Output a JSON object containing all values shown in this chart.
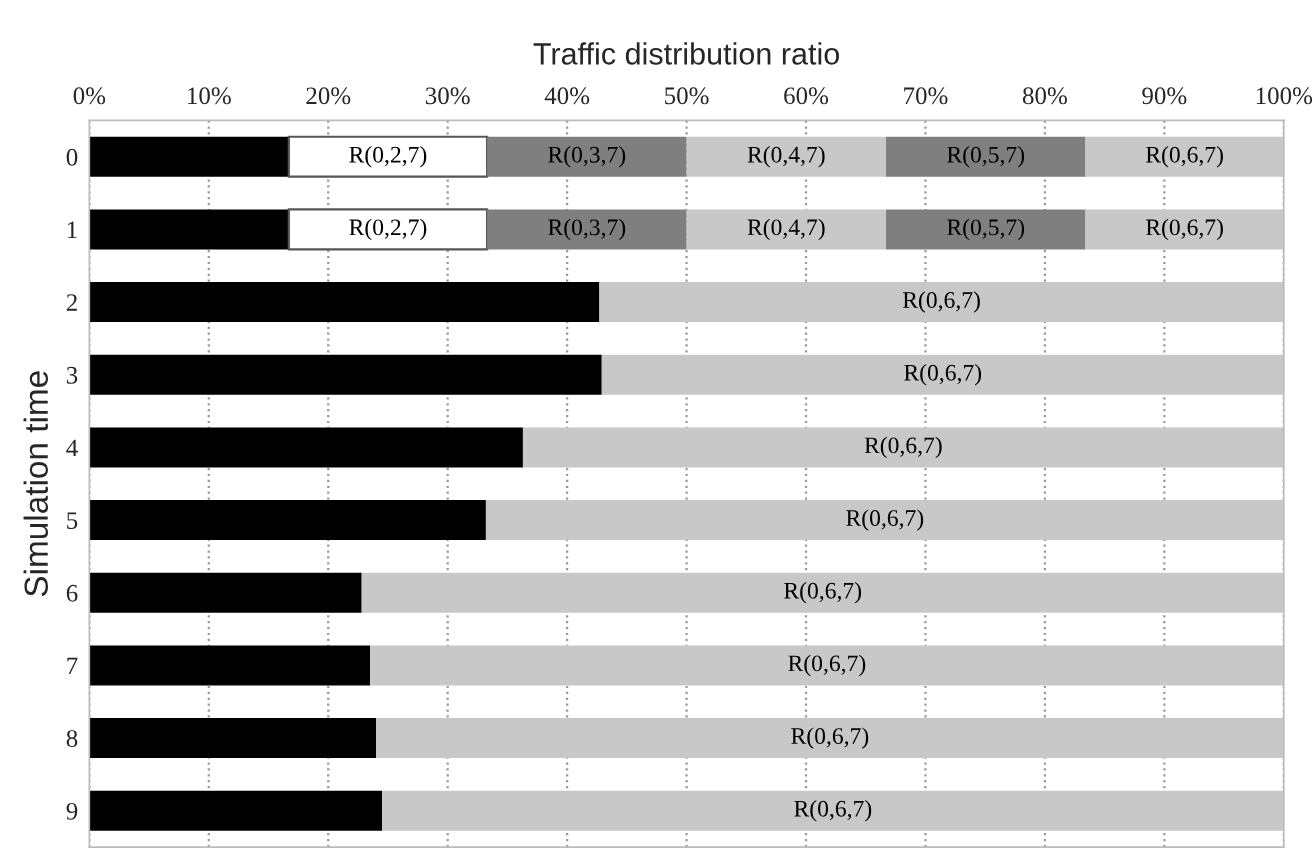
{
  "chart_data": {
    "type": "bar",
    "orientation": "horizontal",
    "stacked": true,
    "xlabel": "Traffic distribution ratio",
    "ylabel": "Simulation time",
    "categories": [
      "0",
      "1",
      "2",
      "3",
      "4",
      "5",
      "6",
      "7",
      "8",
      "9"
    ],
    "series": [
      {
        "color": "#000000",
        "values": [
          16.7,
          16.7,
          42.7,
          42.9,
          36.3,
          33.2,
          22.8,
          23.5,
          24.0,
          24.5
        ]
      },
      {
        "name": "R(0,2,7)",
        "color": "#ffffff",
        "values": [
          16.6,
          16.6,
          0,
          0,
          0,
          0,
          0,
          0,
          0,
          0
        ]
      },
      {
        "name": "R(0,3,7)",
        "color": "#7f7f7f",
        "values": [
          16.7,
          16.7,
          0,
          0,
          0,
          0,
          0,
          0,
          0,
          0
        ]
      },
      {
        "name": "R(0,4,7)",
        "color": "#c8c8c8",
        "values": [
          16.7,
          16.7,
          0,
          0,
          0,
          0,
          0,
          0,
          0,
          0
        ]
      },
      {
        "name": "R(0,5,7)",
        "color": "#7f7f7f",
        "values": [
          16.7,
          16.7,
          0,
          0,
          0,
          0,
          0,
          0,
          0,
          0
        ]
      },
      {
        "name": "R(0,6,7)",
        "color": "#c8c8c8",
        "values": [
          16.6,
          16.6,
          57.3,
          57.1,
          63.7,
          66.8,
          77.2,
          76.5,
          76.0,
          75.5
        ]
      }
    ],
    "xlim": [
      0,
      100
    ],
    "xticks": [
      {
        "value": 0,
        "label": "0%"
      },
      {
        "value": 10,
        "label": "10%"
      },
      {
        "value": 20,
        "label": "20%"
      },
      {
        "value": 30,
        "label": "30%"
      },
      {
        "value": 40,
        "label": "40%"
      },
      {
        "value": 50,
        "label": "50%"
      },
      {
        "value": 60,
        "label": "60%"
      },
      {
        "value": 70,
        "label": "70%"
      },
      {
        "value": 80,
        "label": "80%"
      },
      {
        "value": 90,
        "label": "90%"
      },
      {
        "value": 100,
        "label": "100%"
      }
    ],
    "grid": "x",
    "legend": false
  }
}
